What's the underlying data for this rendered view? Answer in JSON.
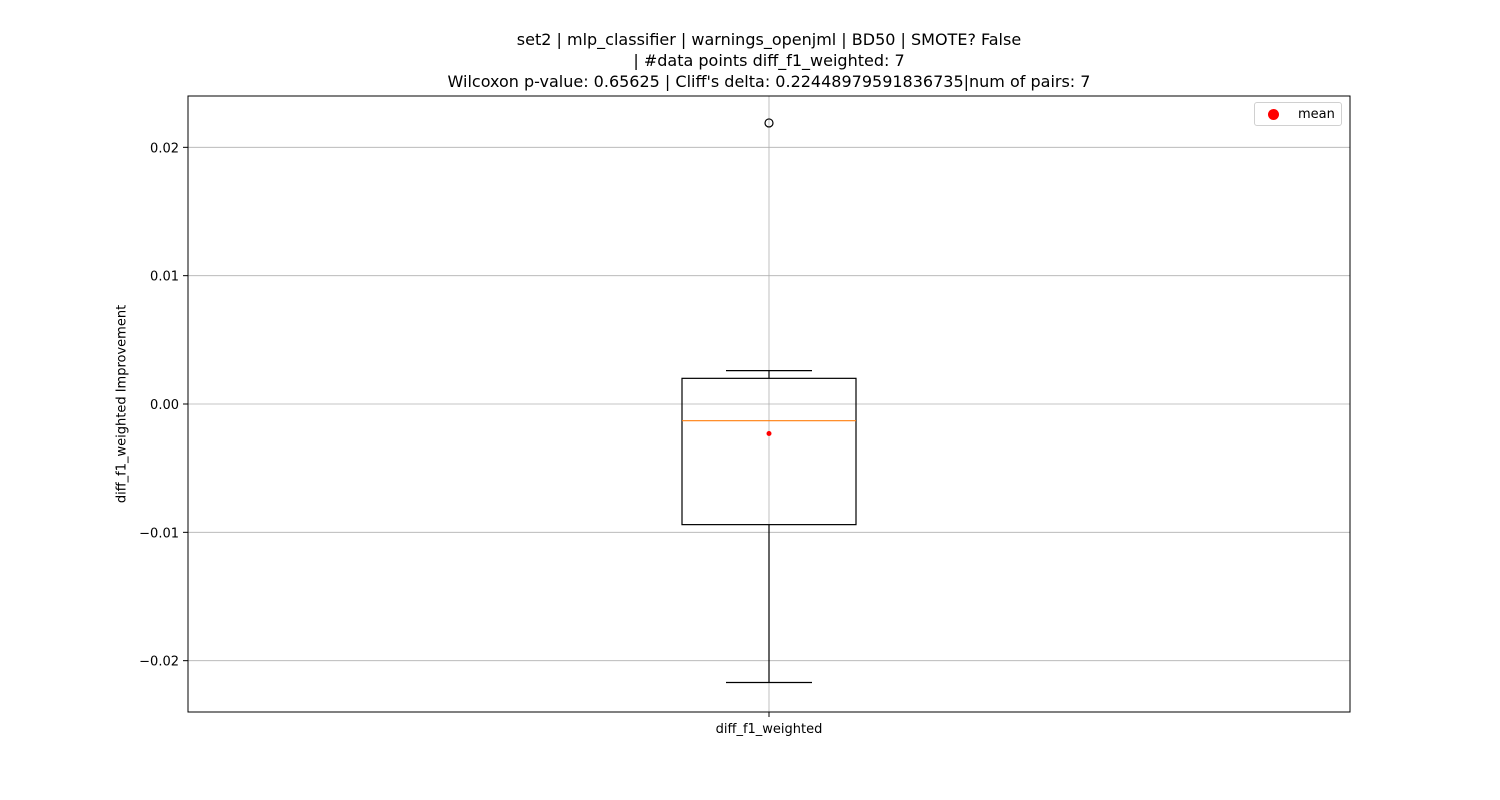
{
  "chart_data": {
    "type": "box",
    "title_lines": [
      "set2 | mlp_classifier | warnings_openjml | BD50 | SMOTE? False",
      "| #data points diff_f1_weighted: 7",
      "Wilcoxon p-value: 0.65625 | Cliff's delta: 0.22448979591836735|num of pairs: 7"
    ],
    "xlabel": "",
    "ylabel": "diff_f1_weighted Improvement",
    "categories": [
      "diff_f1_weighted"
    ],
    "ylim": [
      -0.024,
      0.024
    ],
    "yticks": [
      -0.02,
      -0.01,
      0.0,
      0.01,
      0.02
    ],
    "ytick_labels": [
      "−0.02",
      "−0.01",
      "0.00",
      "0.01",
      "0.02"
    ],
    "grid": true,
    "legend": {
      "placement": "top-right",
      "entries": [
        {
          "label": "mean",
          "color": "#ff0000"
        }
      ]
    },
    "box": {
      "whisker_low": -0.0217,
      "q1": -0.0094,
      "median": -0.0013,
      "q3": 0.002,
      "whisker_high": 0.0026,
      "mean": -0.0023,
      "outliers": [
        0.0219
      ]
    },
    "colors": {
      "box": "#000000",
      "median": "#ff7f0e",
      "mean": "#ff0000",
      "grid": "#b0b0b0"
    }
  }
}
